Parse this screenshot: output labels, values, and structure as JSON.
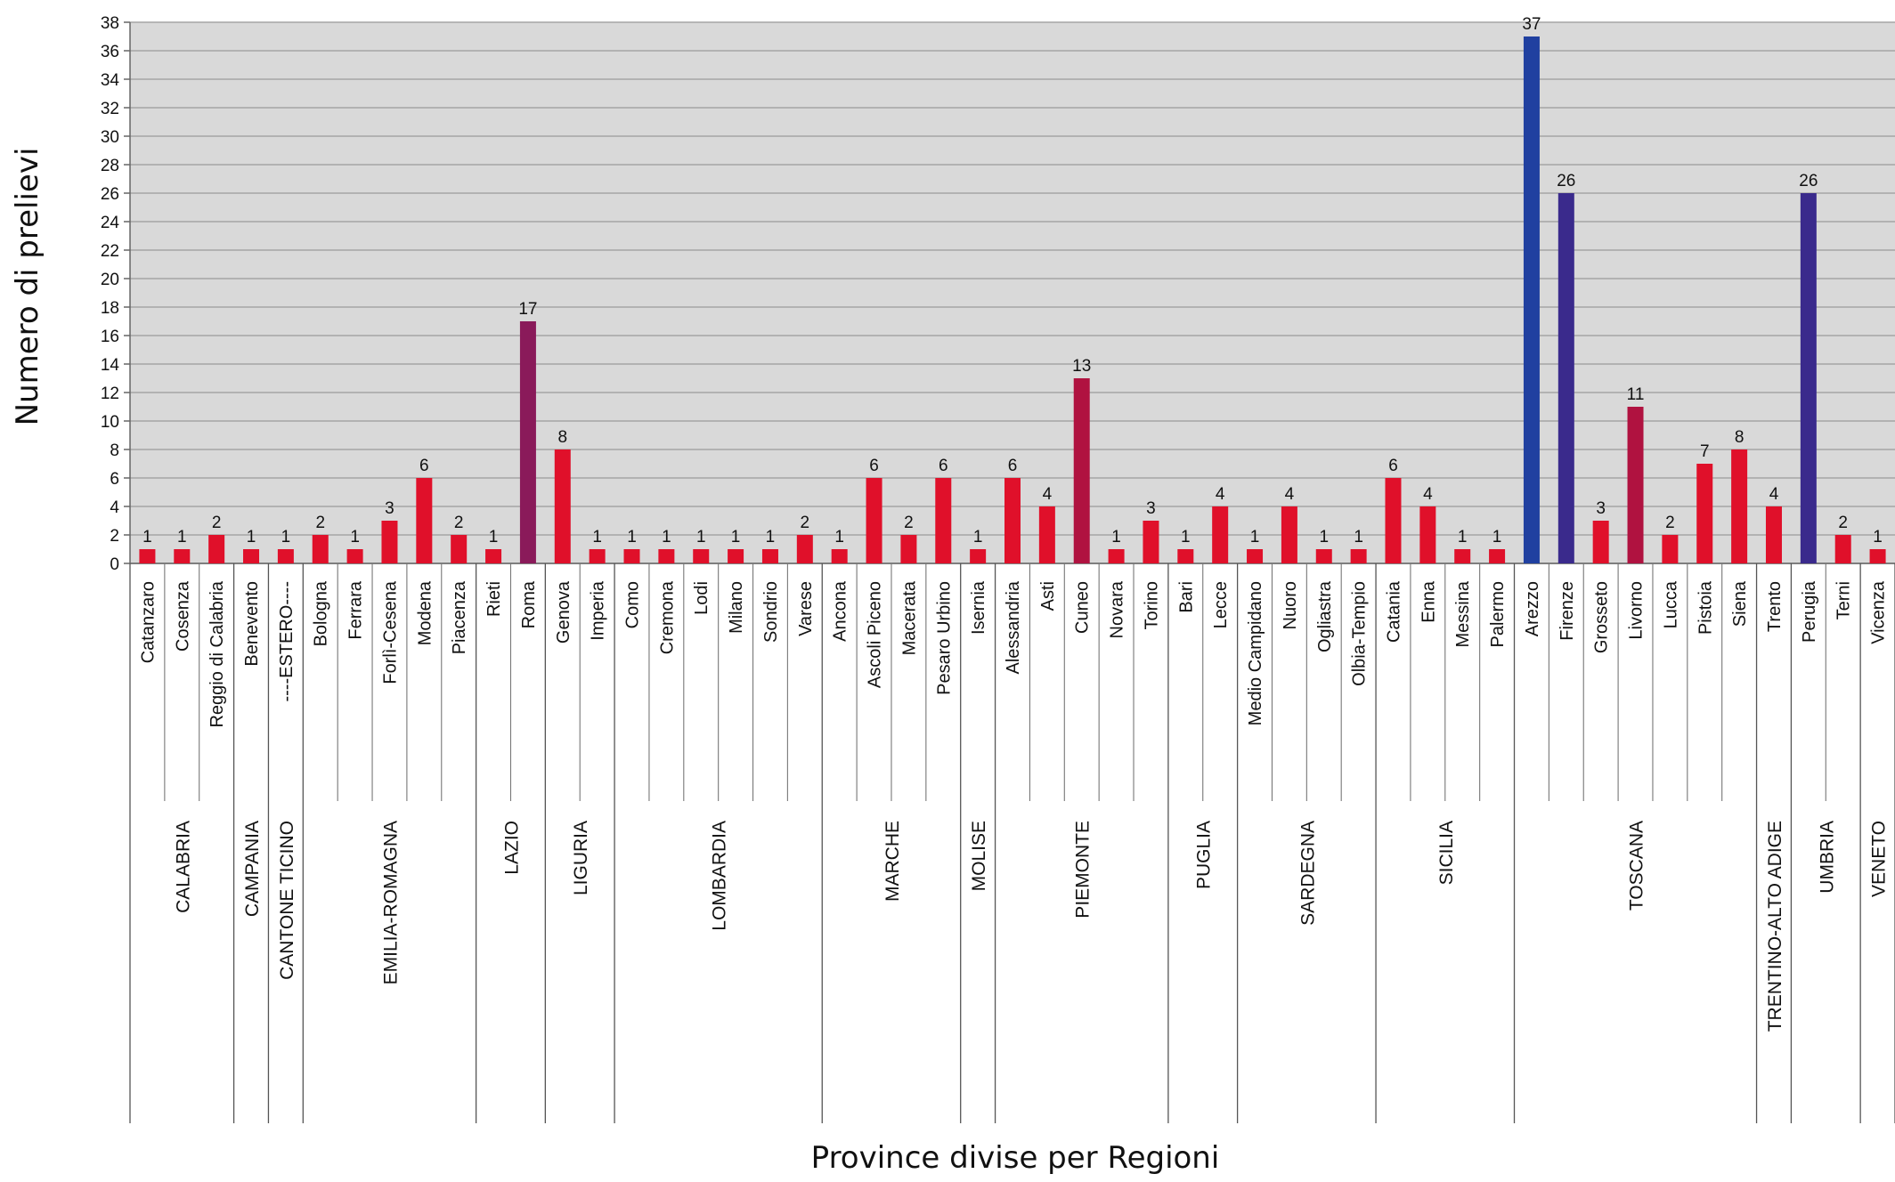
{
  "chart_data": {
    "type": "bar",
    "ylabel": "Numero di prelievi",
    "xlabel": "Province divise per Regioni",
    "ylim": [
      0,
      38
    ],
    "ytick_step": 2,
    "grid": true,
    "categories": [
      "Catanzaro",
      "Cosenza",
      "Reggio di Calabria",
      "Benevento",
      "----ESTERO----",
      "Bologna",
      "Ferrara",
      "Forlì-Cesena",
      "Modena",
      "Piacenza",
      "Rieti",
      "Roma",
      "Genova",
      "Imperia",
      "Como",
      "Cremona",
      "Lodi",
      "Milano",
      "Sondrio",
      "Varese",
      "Ancona",
      "Ascoli Piceno",
      "Macerata",
      "Pesaro Urbino",
      "Isernia",
      "Alessandria",
      "Asti",
      "Cuneo",
      "Novara",
      "Torino",
      "Bari",
      "Lecce",
      "Medio Campidano",
      "Nuoro",
      "Ogliastra",
      "Olbia-Tempio",
      "Catania",
      "Enna",
      "Messina",
      "Palermo",
      "Arezzo",
      "Firenze",
      "Grosseto",
      "Livorno",
      "Lucca",
      "Pistoia",
      "Siena",
      "Trento",
      "Perugia",
      "Terni",
      "Vicenza"
    ],
    "values": [
      1,
      1,
      2,
      1,
      1,
      2,
      1,
      3,
      6,
      2,
      1,
      17,
      8,
      1,
      1,
      1,
      1,
      1,
      1,
      2,
      1,
      6,
      2,
      6,
      1,
      6,
      4,
      13,
      1,
      3,
      1,
      4,
      1,
      4,
      1,
      1,
      6,
      4,
      1,
      1,
      37,
      26,
      3,
      11,
      2,
      7,
      8,
      4,
      26,
      2,
      1
    ],
    "regions": [
      {
        "name": "CALABRIA",
        "count": 3
      },
      {
        "name": "CAMPANIA",
        "count": 1
      },
      {
        "name": "CANTONE TICINO",
        "count": 1
      },
      {
        "name": "EMILIA-ROMAGNA",
        "count": 5
      },
      {
        "name": "LAZIO",
        "count": 2
      },
      {
        "name": "LIGURIA",
        "count": 2
      },
      {
        "name": "LOMBARDIA",
        "count": 6
      },
      {
        "name": "MARCHE",
        "count": 4
      },
      {
        "name": "MOLISE",
        "count": 1
      },
      {
        "name": "PIEMONTE",
        "count": 5
      },
      {
        "name": "PUGLIA",
        "count": 2
      },
      {
        "name": "SARDEGNA",
        "count": 4
      },
      {
        "name": "SICILIA",
        "count": 4
      },
      {
        "name": "TOSCANA",
        "count": 7
      },
      {
        "name": "TRENTINO-ALTO ADIGE",
        "count": 1
      },
      {
        "name": "UMBRIA",
        "count": 2
      },
      {
        "name": "VENETO",
        "count": 1
      }
    ],
    "colors": {
      "low": "#e0102a",
      "mid": "#8a1a5a",
      "high": "#2040a0",
      "plot_bg": "#d9d9d9",
      "grid": "#a6a6a6"
    }
  }
}
